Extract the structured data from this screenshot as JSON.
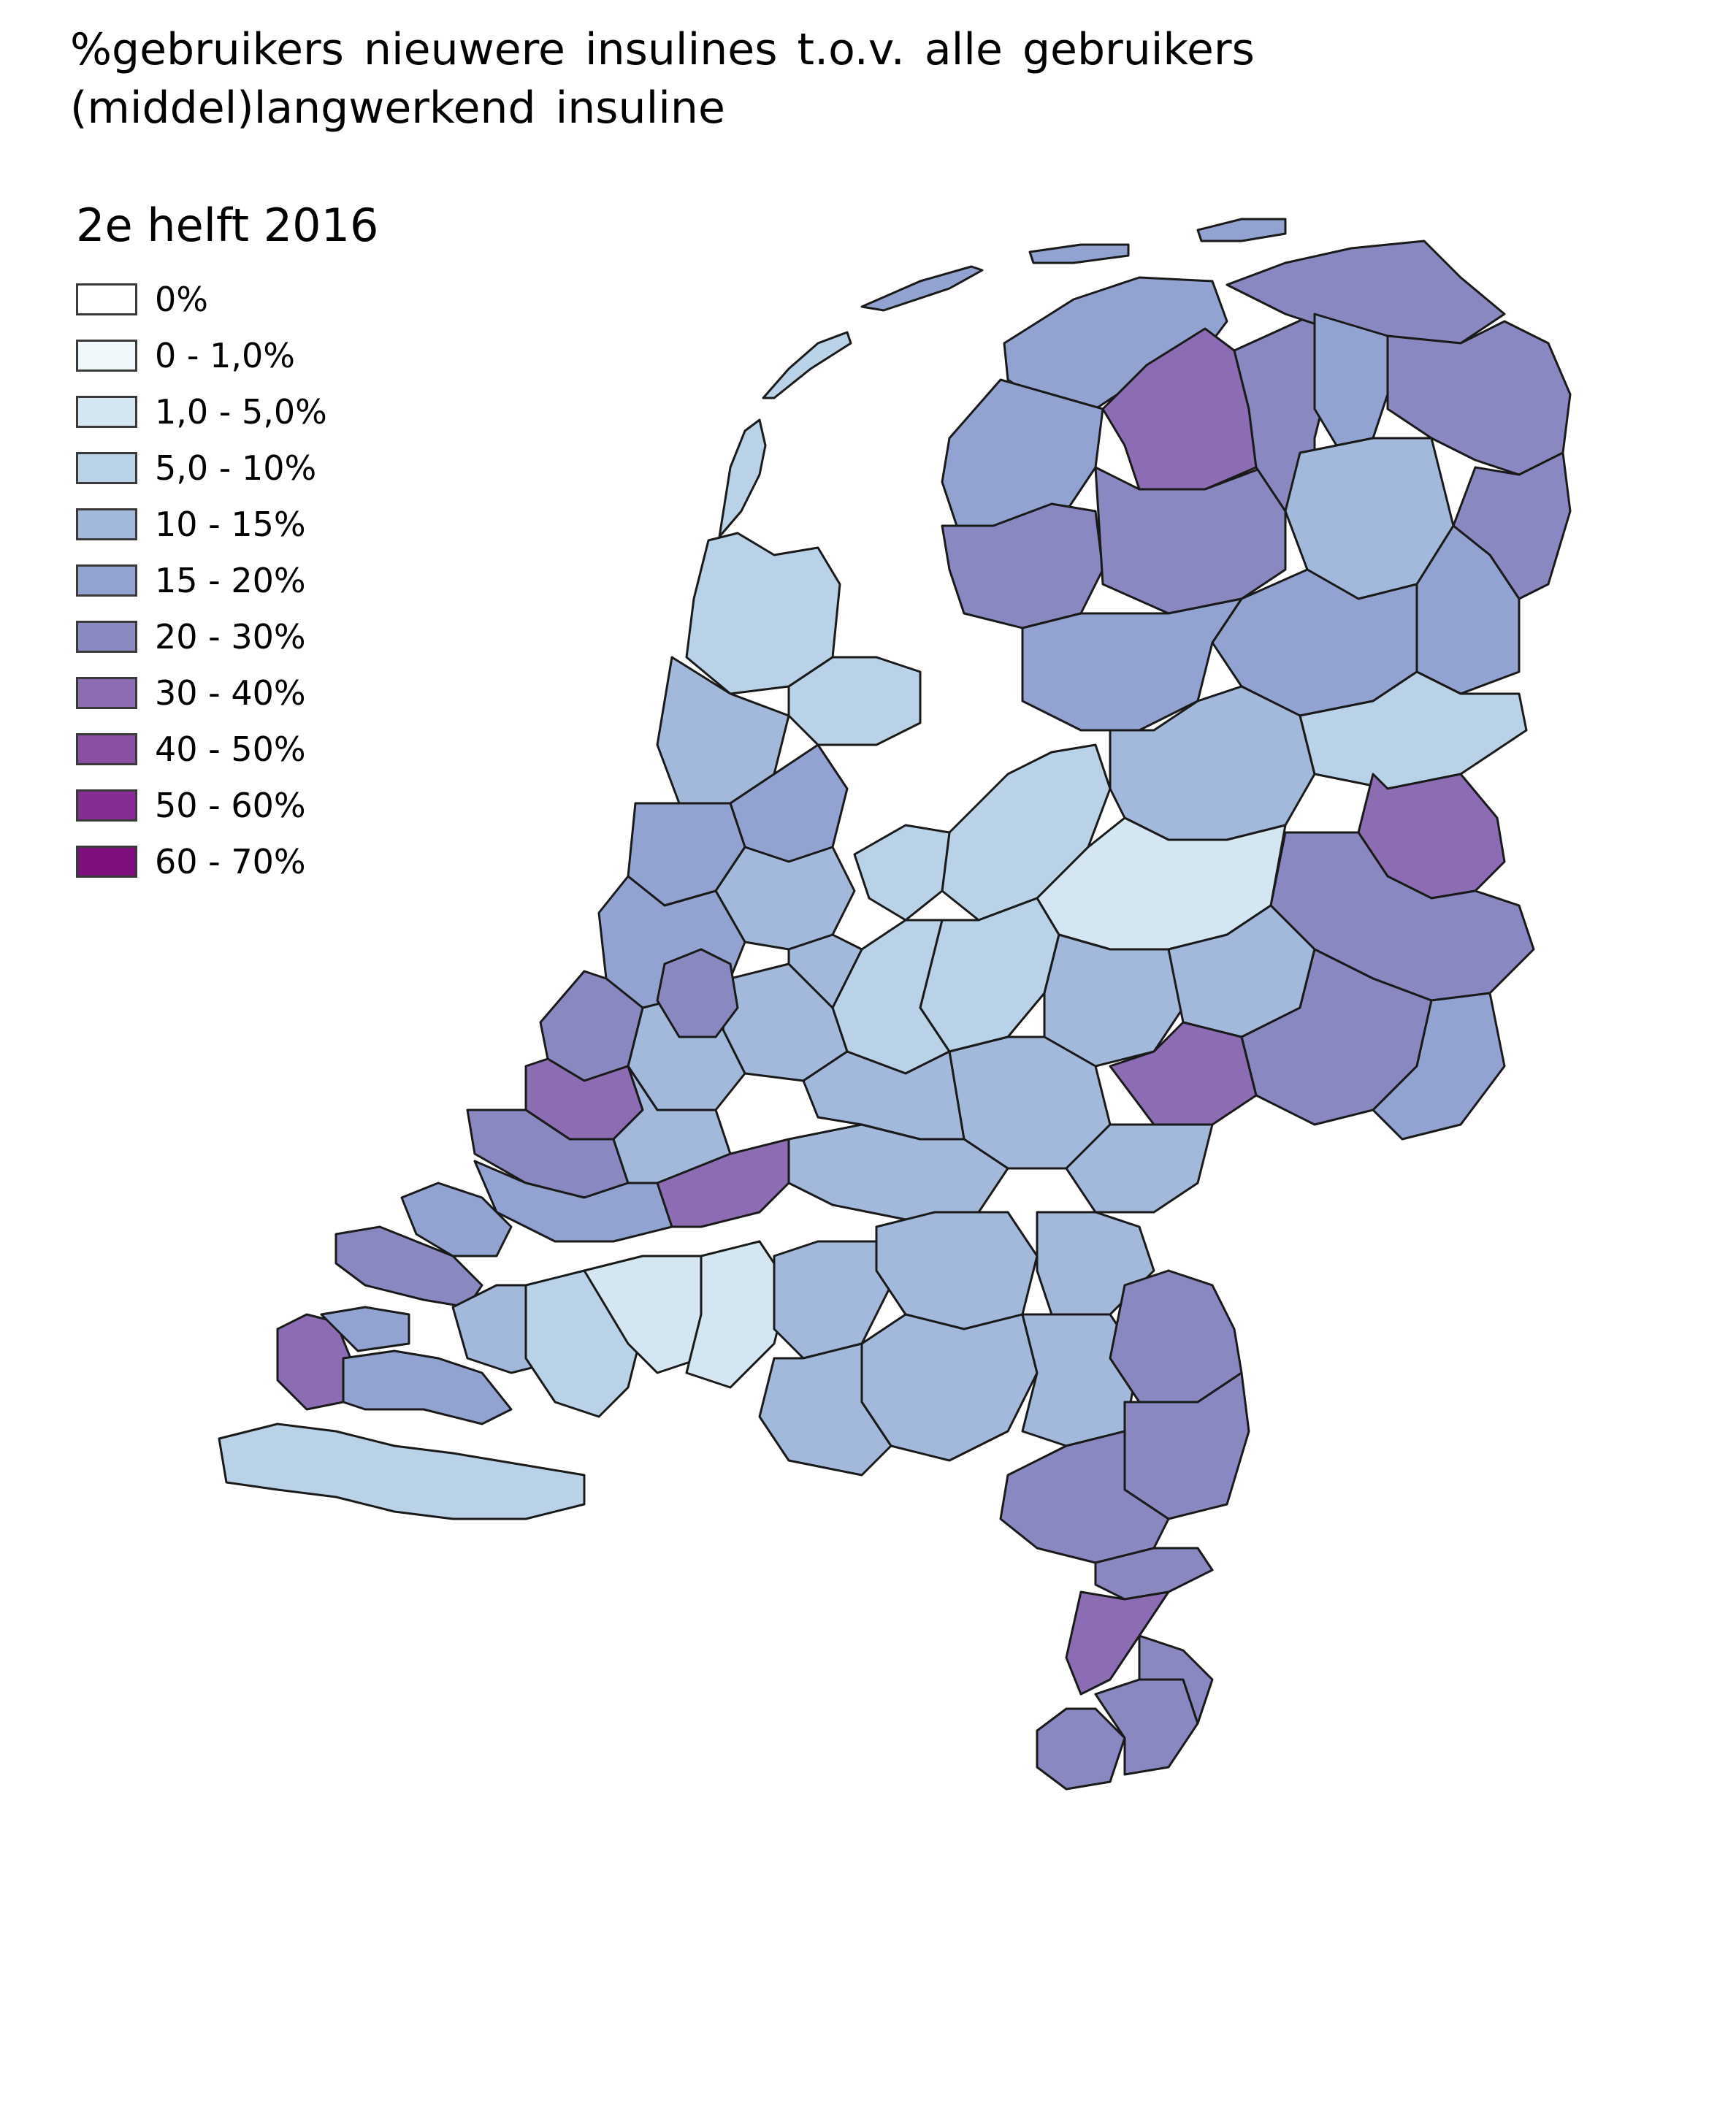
{
  "title": "%gebruikers nieuwere insulines t.o.v. alle gebruikers (middel)langwerkend insuline",
  "legend": {
    "title": "2e helft 2016",
    "items": [
      {
        "label": "0%",
        "color": "#ffffff"
      },
      {
        "label": "0 - 1,0%",
        "color": "#eef7fa"
      },
      {
        "label": "1,0 - 5,0%",
        "color": "#d3e6f1"
      },
      {
        "label": "5,0 - 10%",
        "color": "#b9d2e7"
      },
      {
        "label": "10 - 15%",
        "color": "#a3b9dc"
      },
      {
        "label": "15 - 20%",
        "color": "#93a3d1"
      },
      {
        "label": "20 - 30%",
        "color": "#8a88c1"
      },
      {
        "label": "30 - 40%",
        "color": "#8c6db4"
      },
      {
        "label": "40 - 50%",
        "color": "#8a4ea3"
      },
      {
        "label": "50 - 60%",
        "color": "#872c94"
      },
      {
        "label": "60 - 70%",
        "color": "#7d0e7c"
      }
    ]
  },
  "map": {
    "country": "Netherlands",
    "region_unit": "municipality",
    "boundary_color": "#1a1a1a",
    "water_color": "#ffffff"
  }
}
